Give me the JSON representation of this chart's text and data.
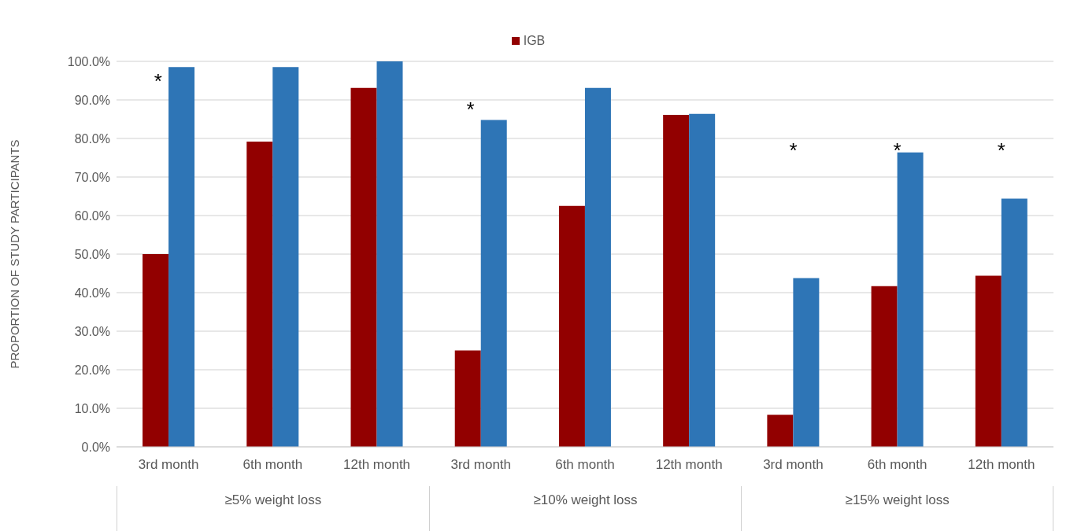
{
  "chart_data": {
    "type": "bar",
    "ylabel": "PROPORTION OF STUDY PARTICIPANTS",
    "categories": [
      "3rd month",
      "6th month",
      "12th month",
      "3rd month",
      "6th month",
      "12th month",
      "3rd month",
      "6th month",
      "12th month"
    ],
    "series": [
      {
        "name": "IGB",
        "color": "#920000",
        "values": [
          50,
          79.2,
          93.1,
          25,
          62.5,
          86.1,
          8.3,
          41.7,
          44.4
        ]
      },
      {
        "color": "#2e75b6",
        "values": [
          98.5,
          98.5,
          100,
          84.8,
          93.1,
          86.4,
          43.8,
          76.4,
          64.4
        ]
      }
    ],
    "ylim": [
      0,
      100
    ],
    "yticks": [
      {
        "value": 0,
        "label": "0.0%"
      },
      {
        "value": 10,
        "label": "10.0%"
      },
      {
        "value": 20,
        "label": "20.0%"
      },
      {
        "value": 30,
        "label": "30.0%"
      },
      {
        "value": 40,
        "label": "40.0%"
      },
      {
        "value": 50,
        "label": "50.0%"
      },
      {
        "value": 60,
        "label": "60.0%"
      },
      {
        "value": 70,
        "label": "70.0%"
      },
      {
        "value": 80,
        "label": "80.0%"
      },
      {
        "value": 90,
        "label": "90.0%"
      },
      {
        "value": 100,
        "label": "100.0%"
      }
    ],
    "grid": "y",
    "legend": "top",
    "annotations": [
      "*",
      "*",
      "*",
      "*",
      "*",
      "≥5% weight loss",
      "≥10% weight loss",
      "≥15% weight loss"
    ]
  }
}
